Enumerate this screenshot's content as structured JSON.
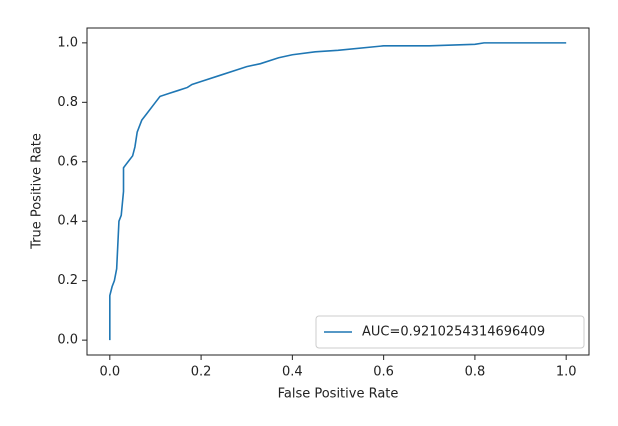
{
  "chart_data": {
    "type": "line",
    "xlabel": "False Positive Rate",
    "ylabel": "True Positive Rate",
    "x": [
      0,
      0,
      0.005,
      0.01,
      0.015,
      0.02,
      0.025,
      0.03,
      0.03,
      0.04,
      0.05,
      0.055,
      0.06,
      0.07,
      0.08,
      0.1,
      0.11,
      0.13,
      0.15,
      0.17,
      0.18,
      0.2,
      0.24,
      0.28,
      0.3,
      0.33,
      0.37,
      0.4,
      0.45,
      0.5,
      0.6,
      0.7,
      0.8,
      0.82,
      1.0
    ],
    "series": [
      {
        "name": "AUC=0.9210254314696409",
        "color": "#1f77b4",
        "values": [
          0,
          0.15,
          0.18,
          0.2,
          0.24,
          0.4,
          0.42,
          0.5,
          0.58,
          0.6,
          0.62,
          0.65,
          0.7,
          0.74,
          0.76,
          0.8,
          0.82,
          0.83,
          0.84,
          0.85,
          0.86,
          0.87,
          0.89,
          0.91,
          0.92,
          0.93,
          0.95,
          0.96,
          0.97,
          0.975,
          0.99,
          0.99,
          0.995,
          1.0,
          1.0
        ]
      }
    ],
    "xlim": [
      -0.05,
      1.05
    ],
    "ylim": [
      -0.05,
      1.05
    ],
    "xticks": [
      {
        "value": 0,
        "label": "0.0"
      },
      0.2,
      0.4,
      0.6,
      0.8,
      {
        "value": 1,
        "label": "1.0"
      }
    ],
    "yticks": [
      {
        "value": 0,
        "label": "0.0"
      },
      0.2,
      0.4,
      0.6,
      0.8,
      {
        "value": 1,
        "label": "1.0"
      }
    ],
    "legend": "lower right",
    "grid": false
  }
}
